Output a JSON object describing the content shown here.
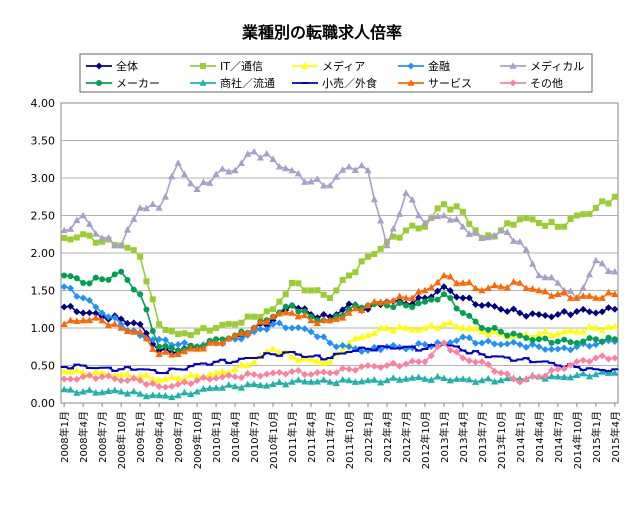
{
  "chart_data": {
    "type": "line",
    "title": "業種別の転職求人倍率",
    "xlabel": "",
    "ylabel": "",
    "ylim": [
      0,
      4.0
    ],
    "yticks": [
      "0.00",
      "0.50",
      "1.00",
      "1.50",
      "2.00",
      "2.50",
      "3.00",
      "3.50",
      "4.00"
    ],
    "grid": true,
    "legend_position": "top",
    "x_tick_labels": [
      "2008年1月",
      "2008年4月",
      "2008年7月",
      "2008年10月",
      "2009年1月",
      "2009年4月",
      "2009年7月",
      "2009年10月",
      "2010年1月",
      "2010年4月",
      "2010年7月",
      "2010年10月",
      "2011年1月",
      "2011年4月",
      "2011年7月",
      "2011年10月",
      "2012年1月",
      "2012年4月",
      "2012年7月",
      "2012年10月",
      "2013年1月",
      "2013年4月",
      "2013年7月",
      "2013年10月",
      "2014年1月",
      "2014年4月",
      "2014年7月",
      "2014年10月",
      "2015年1月",
      "2015年4月"
    ],
    "x_anchor_index": [
      0,
      3,
      6,
      9,
      12,
      15,
      18,
      21,
      24,
      27,
      30,
      33,
      36,
      39,
      42,
      45,
      48,
      51,
      54,
      57,
      60,
      63,
      66,
      69,
      72,
      75,
      78,
      81,
      84,
      87
    ],
    "n_points": 88,
    "series": [
      {
        "name": "全体",
        "color": "#000080",
        "marker": "diamond",
        "anchors": [
          1.28,
          1.2,
          1.15,
          1.12,
          1.05,
          0.7,
          0.68,
          0.75,
          0.8,
          0.88,
          1.0,
          1.1,
          1.3,
          1.18,
          1.15,
          1.32,
          1.25,
          1.35,
          1.32,
          1.4,
          1.55,
          1.4,
          1.3,
          1.25,
          1.2,
          1.18,
          1.18,
          1.22,
          1.2,
          1.25
        ]
      },
      {
        "name": "IT／通信",
        "color": "#9ACD32",
        "marker": "square",
        "anchors": [
          2.2,
          2.25,
          2.15,
          2.1,
          1.95,
          1.05,
          0.92,
          0.95,
          1.0,
          1.05,
          1.15,
          1.25,
          1.6,
          1.5,
          1.4,
          1.7,
          1.95,
          2.15,
          2.3,
          2.35,
          2.65,
          2.55,
          2.2,
          2.3,
          2.45,
          2.4,
          2.35,
          2.5,
          2.6,
          2.75
        ]
      },
      {
        "name": "メディア",
        "color": "#FFFF00",
        "marker": "triangle",
        "anchors": [
          0.42,
          0.4,
          0.4,
          0.38,
          0.36,
          0.3,
          0.33,
          0.36,
          0.4,
          0.45,
          0.55,
          0.72,
          0.62,
          0.58,
          0.55,
          0.8,
          0.9,
          1.0,
          1.0,
          1.0,
          1.05,
          1.0,
          0.95,
          0.92,
          0.9,
          0.92,
          0.92,
          0.95,
          1.0,
          1.02
        ]
      },
      {
        "name": "金融",
        "color": "#1E90FF",
        "marker": "diamond",
        "anchors": [
          1.55,
          1.4,
          1.2,
          1.05,
          0.9,
          0.85,
          0.78,
          0.75,
          0.8,
          0.85,
          0.95,
          1.05,
          1.0,
          0.95,
          0.8,
          0.75,
          0.7,
          0.75,
          0.72,
          0.78,
          0.8,
          0.88,
          0.8,
          0.78,
          0.78,
          0.75,
          0.72,
          0.75,
          0.78,
          0.82
        ]
      },
      {
        "name": "メディカル",
        "color": "#A8A0C8",
        "marker": "triangle",
        "anchors": [
          2.3,
          2.5,
          2.2,
          2.1,
          2.6,
          2.6,
          3.2,
          2.85,
          3.05,
          3.1,
          3.35,
          3.25,
          3.1,
          2.95,
          2.9,
          3.15,
          3.1,
          2.1,
          2.8,
          2.4,
          2.5,
          2.35,
          2.2,
          2.3,
          2.15,
          1.7,
          1.6,
          1.4,
          1.9,
          1.75
        ]
      },
      {
        "name": "メーカー",
        "color": "#00A050",
        "marker": "circle",
        "anchors": [
          1.7,
          1.6,
          1.65,
          1.75,
          1.45,
          0.75,
          0.7,
          0.75,
          0.85,
          0.9,
          1.0,
          1.15,
          1.3,
          1.15,
          1.1,
          1.25,
          1.3,
          1.3,
          1.3,
          1.35,
          1.45,
          1.2,
          1.0,
          0.95,
          0.9,
          0.85,
          0.82,
          0.8,
          0.85,
          0.85
        ]
      },
      {
        "name": "商社／流通",
        "color": "#20B2AA",
        "marker": "triangle",
        "anchors": [
          0.18,
          0.15,
          0.14,
          0.15,
          0.12,
          0.1,
          0.1,
          0.15,
          0.2,
          0.22,
          0.25,
          0.25,
          0.28,
          0.28,
          0.28,
          0.3,
          0.3,
          0.3,
          0.32,
          0.32,
          0.33,
          0.32,
          0.3,
          0.3,
          0.32,
          0.35,
          0.35,
          0.37,
          0.38,
          0.4
        ]
      },
      {
        "name": "小売／外食",
        "color": "#0000CD",
        "marker": "dash",
        "anchors": [
          0.48,
          0.5,
          0.47,
          0.45,
          0.45,
          0.4,
          0.45,
          0.52,
          0.55,
          0.55,
          0.6,
          0.65,
          0.68,
          0.62,
          0.6,
          0.68,
          0.72,
          0.75,
          0.75,
          0.72,
          0.78,
          0.7,
          0.65,
          0.62,
          0.58,
          0.55,
          0.5,
          0.48,
          0.45,
          0.45
        ]
      },
      {
        "name": "サービス",
        "color": "#FF6600",
        "marker": "triangle",
        "anchors": [
          1.05,
          1.1,
          1.1,
          1.0,
          0.95,
          0.65,
          0.65,
          0.72,
          0.8,
          0.9,
          1.0,
          1.15,
          1.2,
          1.1,
          1.1,
          1.2,
          1.3,
          1.35,
          1.4,
          1.5,
          1.7,
          1.6,
          1.5,
          1.55,
          1.6,
          1.5,
          1.45,
          1.4,
          1.4,
          1.45
        ]
      },
      {
        "name": "その他",
        "color": "#FF7F9F",
        "marker": "diamond",
        "anchors": [
          0.32,
          0.35,
          0.35,
          0.3,
          0.3,
          0.22,
          0.25,
          0.3,
          0.33,
          0.35,
          0.38,
          0.4,
          0.42,
          0.38,
          0.4,
          0.45,
          0.5,
          0.5,
          0.52,
          0.55,
          0.8,
          0.6,
          0.55,
          0.4,
          0.28,
          0.35,
          0.45,
          0.55,
          0.6,
          0.6
        ]
      }
    ]
  }
}
